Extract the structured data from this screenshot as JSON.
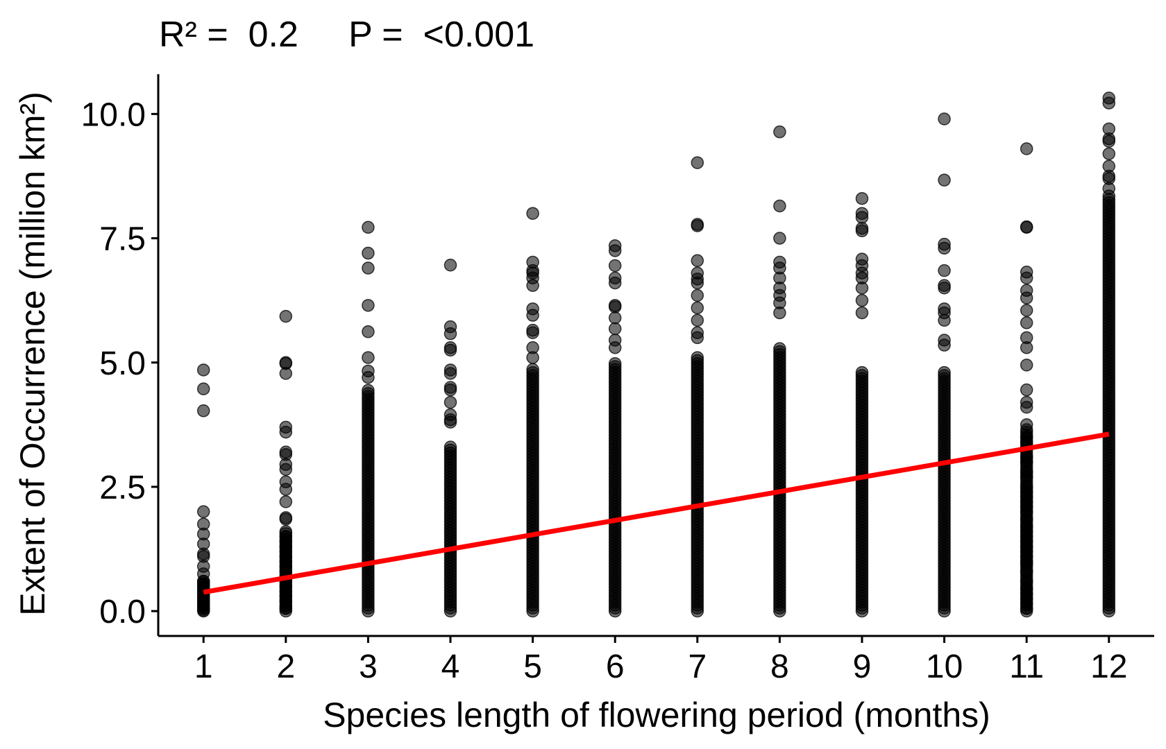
{
  "chart_data": {
    "type": "scatter",
    "subtitle": "R² =  0.2     P =  <0.001",
    "xlabel": "Species length of flowering period (months)",
    "ylabel": "Extent of Occurrence (million km²)",
    "x_ticks": [
      "1",
      "2",
      "3",
      "4",
      "5",
      "6",
      "7",
      "8",
      "9",
      "10",
      "11",
      "12"
    ],
    "y_ticks": [
      "0.0",
      "2.5",
      "5.0",
      "7.5",
      "10.0"
    ],
    "xlim": [
      0.45,
      12.55
    ],
    "ylim": [
      -0.5,
      10.8
    ],
    "grid": false,
    "legend": "none",
    "point_color": "#000000",
    "point_opacity": 0.55,
    "trend_color": "#ff0000",
    "points": [
      {
        "x": 1,
        "y": [
          4.85,
          4.47,
          4.03,
          2.0,
          1.75,
          1.55,
          1.35,
          1.15,
          1.1,
          0.9,
          0.75,
          0.6,
          0.55,
          0.5,
          0.45,
          0.4,
          0.35,
          0.3,
          0.25,
          0.2,
          0.15,
          0.1,
          0.05,
          0.02
        ]
      },
      {
        "x": 2,
        "y": [
          5.93,
          5.0,
          4.98,
          4.78,
          3.7,
          3.6,
          3.2,
          3.15,
          2.95,
          2.85,
          2.6,
          2.45,
          2.2,
          1.88,
          1.85,
          1.6,
          1.5,
          1.4,
          1.3,
          1.2,
          1.1,
          1.0,
          0.9,
          0.8,
          0.7,
          0.6,
          0.5,
          0.4,
          0.3,
          0.2,
          0.1,
          0.05
        ]
      },
      {
        "x": 3,
        "y": [
          7.72,
          7.2,
          6.9,
          6.15,
          5.62,
          5.1,
          4.83,
          4.7
        ]
      },
      {
        "x": 4,
        "y": [
          6.96,
          5.72,
          5.58,
          5.3,
          5.25,
          4.85,
          4.78,
          4.5,
          4.45,
          4.2,
          3.95,
          3.85,
          3.8
        ]
      },
      {
        "x": 5,
        "y": [
          8.0,
          7.02,
          6.85,
          6.8,
          6.7,
          6.55,
          6.08,
          5.95,
          5.65,
          5.6,
          5.3,
          5.1
        ]
      },
      {
        "x": 6,
        "y": [
          7.35,
          7.25,
          6.95,
          6.7,
          6.6,
          6.15,
          6.12,
          5.9,
          5.68,
          5.45,
          5.3
        ]
      },
      {
        "x": 7,
        "y": [
          9.02,
          7.78,
          7.75,
          7.05,
          6.8,
          6.68,
          6.6,
          6.35,
          6.1,
          5.85,
          5.6,
          5.5,
          5.1
        ]
      },
      {
        "x": 8,
        "y": [
          9.64,
          8.15,
          7.5,
          7.02,
          6.9,
          6.7,
          6.5,
          6.35,
          6.2,
          6.0
        ]
      },
      {
        "x": 9,
        "y": [
          8.3,
          8.0,
          7.92,
          7.7,
          7.65,
          7.08,
          6.95,
          6.8,
          6.7,
          6.5,
          6.25,
          6.0
        ]
      },
      {
        "x": 10,
        "y": [
          9.9,
          8.67,
          7.38,
          7.3,
          6.85,
          6.55,
          6.5,
          6.08,
          6.0,
          5.85,
          5.45,
          5.35
        ]
      },
      {
        "x": 11,
        "y": [
          9.3,
          7.73,
          7.72,
          6.82,
          6.7,
          6.45,
          6.3,
          6.05,
          5.8,
          5.5,
          5.3,
          4.95,
          4.45,
          4.2,
          4.1,
          3.75,
          3.65,
          3.5,
          3.4,
          3.3,
          3.1,
          3.0,
          2.8,
          2.7,
          2.5,
          2.4,
          2.3,
          2.2,
          2.1,
          2.0,
          1.85,
          1.7,
          1.6,
          1.5,
          1.4,
          1.3,
          1.2,
          1.1,
          1.0,
          0.95,
          0.8,
          0.6,
          0.45,
          0.35,
          0.25,
          0.15,
          0.05
        ]
      },
      {
        "x": 12,
        "y": [
          10.32,
          10.22,
          9.7,
          9.5,
          9.45,
          9.2,
          8.95,
          8.75,
          8.7,
          8.5,
          8.35
        ]
      }
    ],
    "dense_columns": [
      {
        "x": 1,
        "y_from": 0.0,
        "y_to": 0.6
      },
      {
        "x": 2,
        "y_from": 0.0,
        "y_to": 1.6
      },
      {
        "x": 3,
        "y_from": 0.0,
        "y_to": 4.45
      },
      {
        "x": 4,
        "y_from": 0.0,
        "y_to": 3.3
      },
      {
        "x": 5,
        "y_from": 0.0,
        "y_to": 4.9
      },
      {
        "x": 6,
        "y_from": 0.0,
        "y_to": 5.0
      },
      {
        "x": 7,
        "y_from": 0.0,
        "y_to": 5.05
      },
      {
        "x": 8,
        "y_from": 0.0,
        "y_to": 5.3
      },
      {
        "x": 9,
        "y_from": 0.0,
        "y_to": 4.8
      },
      {
        "x": 10,
        "y_from": 0.0,
        "y_to": 4.8
      },
      {
        "x": 11,
        "y_from": 0.0,
        "y_to": 3.6
      },
      {
        "x": 12,
        "y_from": 0.0,
        "y_to": 8.3
      }
    ],
    "trend_line": {
      "x": [
        1,
        12
      ],
      "y": [
        0.38,
        3.56
      ]
    }
  }
}
